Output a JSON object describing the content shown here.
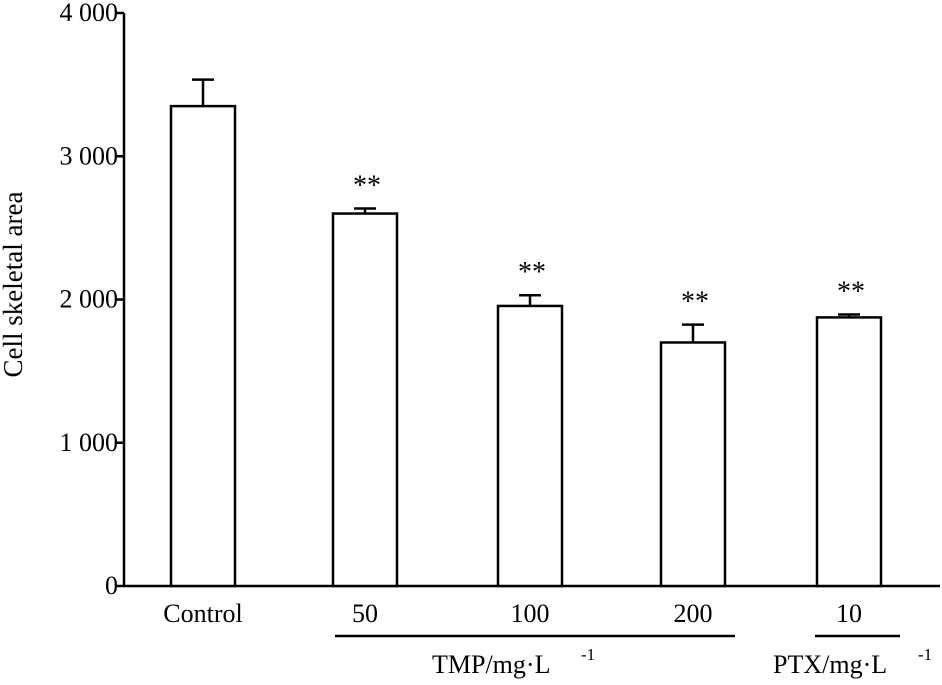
{
  "chart_data": {
    "type": "bar",
    "title": "",
    "ylabel": "Cell skeletal area",
    "ylim": [
      0,
      4000
    ],
    "yticks": [
      {
        "value": 0,
        "label": "0"
      },
      {
        "value": 1000,
        "label": "1 000"
      },
      {
        "value": 2000,
        "label": "2 000"
      },
      {
        "value": 3000,
        "label": "3 000"
      },
      {
        "value": 4000,
        "label": "4 000"
      }
    ],
    "categories": [
      "Control",
      "50",
      "100",
      "200",
      "10"
    ],
    "values": [
      3350,
      2600,
      1955,
      1700,
      1875
    ],
    "errors": [
      185,
      35,
      75,
      125,
      20
    ],
    "significance": [
      "",
      "**",
      "**",
      "**",
      "**"
    ],
    "groups": [
      {
        "label": "TMP/mg·L",
        "superscript": "-1",
        "categories": [
          "50",
          "100",
          "200"
        ]
      },
      {
        "label": "PTX/mg·L",
        "superscript": "-1",
        "categories": [
          "10"
        ]
      }
    ],
    "grid": false,
    "colors": {
      "bar_fill": "#ffffff",
      "stroke": "#000000"
    }
  }
}
